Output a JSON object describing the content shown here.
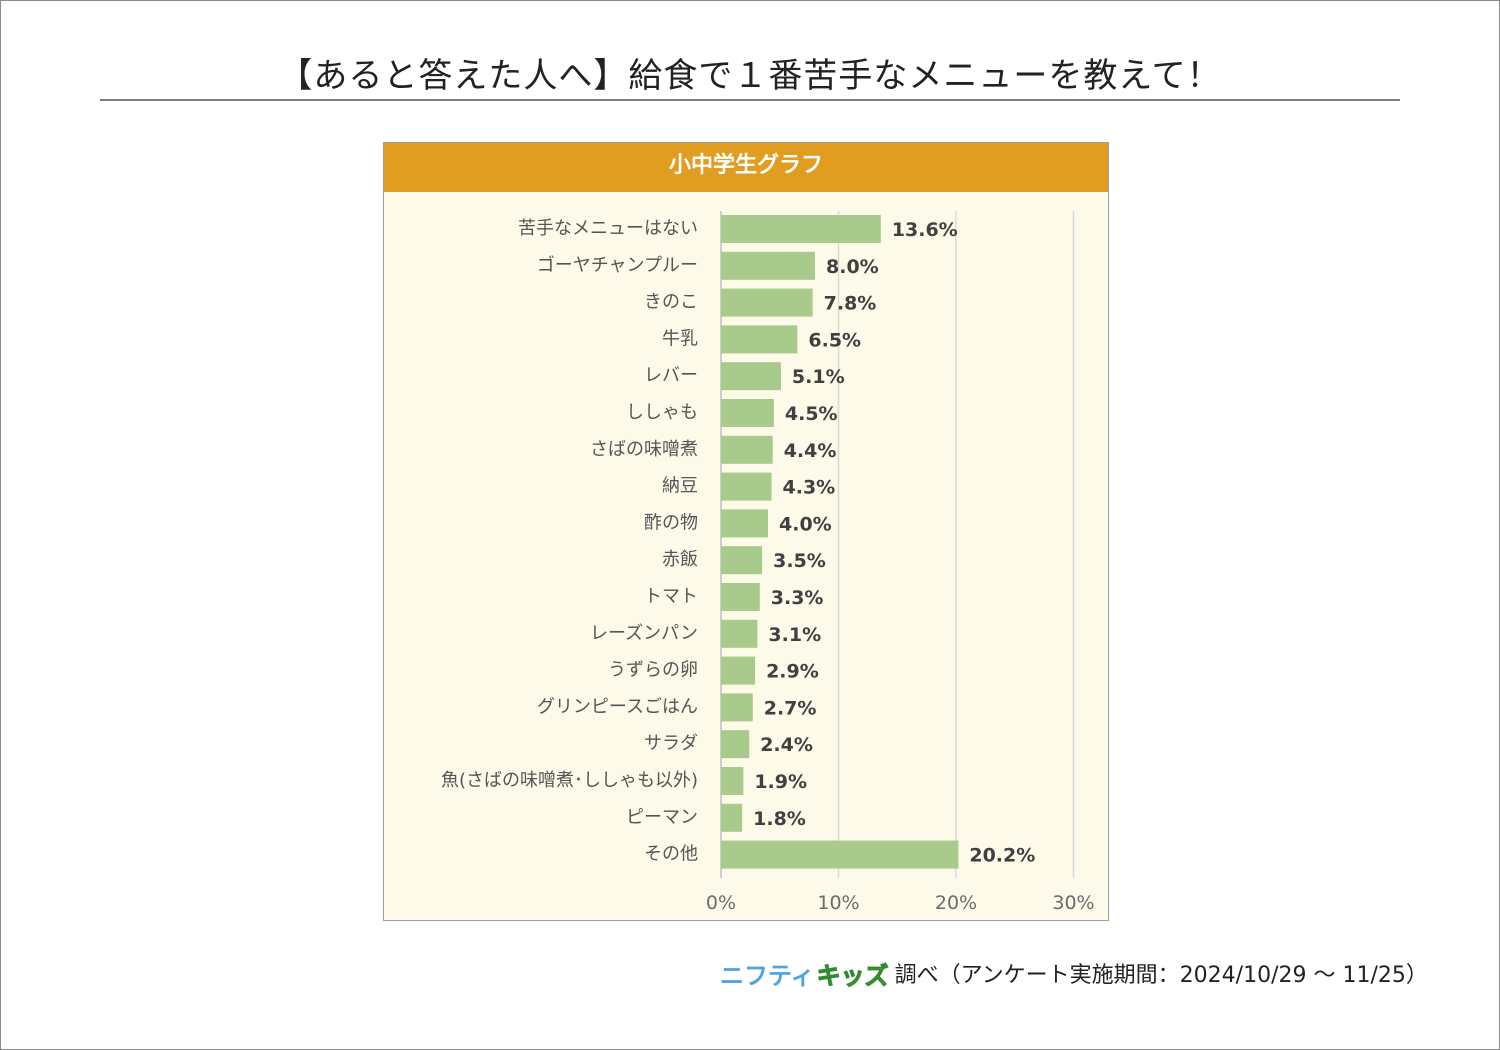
{
  "title": "【あると答えた人へ】給食で１番苦手なメニューを教えて！",
  "panel_title": "小中学生グラフ",
  "footer": {
    "logo_part1": "ニフティ",
    "logo_part2": "キッズ",
    "source_text": "調べ（アンケート実施期間：2024/10/29 ～ 11/25）"
  },
  "colors": {
    "bar": "#a8ca8a",
    "header": "#e09d1f",
    "panel_bg": "#fdfaea",
    "grid": "#d9d9d9"
  },
  "chart_data": {
    "type": "bar",
    "orientation": "horizontal",
    "categories": [
      "苦手なメニューはない",
      "ゴーヤチャンプルー",
      "きのこ",
      "牛乳",
      "レバー",
      "ししゃも",
      "さばの味噌煮",
      "納豆",
      "酢の物",
      "赤飯",
      "トマト",
      "レーズンパン",
      "うずらの卵",
      "グリンピースごはん",
      "サラダ",
      "魚(さばの味噌煮･ししゃも以外)",
      "ピーマン",
      "その他"
    ],
    "values": [
      13.6,
      8.0,
      7.8,
      6.5,
      5.1,
      4.5,
      4.4,
      4.3,
      4.0,
      3.5,
      3.3,
      3.1,
      2.9,
      2.7,
      2.4,
      1.9,
      1.8,
      20.2
    ],
    "value_labels": [
      "13.6%",
      "8.0%",
      "7.8%",
      "6.5%",
      "5.1%",
      "4.5%",
      "4.4%",
      "4.3%",
      "4.0%",
      "3.5%",
      "3.3%",
      "3.1%",
      "2.9%",
      "2.7%",
      "2.4%",
      "1.9%",
      "1.8%",
      "20.2%"
    ],
    "xlim": [
      0,
      30
    ],
    "ticks": [
      0,
      10,
      20,
      30
    ],
    "tick_labels": [
      "0%",
      "10%",
      "20%",
      "30%"
    ],
    "grid": true,
    "legend": "none"
  }
}
